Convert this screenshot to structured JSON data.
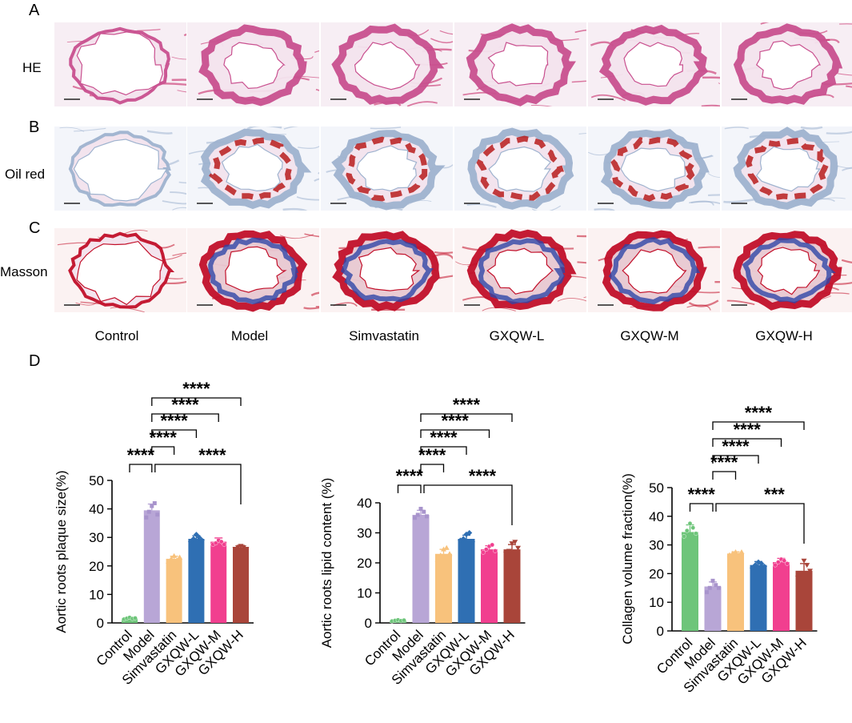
{
  "panel_labels": {
    "a": "A",
    "b": "B",
    "c": "C",
    "d": "D"
  },
  "row_labels": [
    "HE",
    "Oil red",
    "Masson"
  ],
  "groups": [
    "Control",
    "Model",
    "Simvastatin",
    "GXQW-L",
    "GXQW-M",
    "GXQW-H"
  ],
  "colors": {
    "he_bg": "#f7eef4",
    "he_ring": "#c9508f",
    "he_fiber": "#c2185b",
    "oil_bg": "#f3f5fa",
    "oil_ring": "#9fb3cf",
    "oil_lipid": "#b71c1c",
    "masson_bg": "#fbf2f2",
    "masson_red": "#c2102a",
    "masson_blue": "#2f46a8",
    "bars": [
      "#6ec57a",
      "#b8a6d6",
      "#f8c27c",
      "#2f6fb3",
      "#f13f8f",
      "#a9453a"
    ]
  },
  "chart_data": [
    {
      "type": "bar",
      "categories": [
        "Control",
        "Model",
        "Simvastatin",
        "GXQW-L",
        "GXQW-M",
        "GXQW-H"
      ],
      "values": [
        1.6,
        39.5,
        22.5,
        29.5,
        28.5,
        26.5
      ],
      "errors": [
        0.3,
        2.2,
        0.9,
        1.1,
        1.3,
        0.7
      ],
      "points": [
        [
          1.3,
          1.6,
          1.9,
          1.5,
          1.7
        ],
        [
          37,
          39,
          41,
          42,
          38
        ],
        [
          21.5,
          22.5,
          23.5,
          22,
          23
        ],
        [
          28.5,
          29.5,
          31,
          30,
          29
        ],
        [
          27.5,
          28,
          29,
          28.5,
          27.5
        ],
        [
          26,
          26.5,
          27,
          26.5,
          26
        ]
      ],
      "ylabel": "Aortic roots plaque size(%)",
      "ylim": [
        0,
        50
      ],
      "yticks": [
        0,
        10,
        20,
        30,
        40,
        50
      ],
      "significance": [
        {
          "from": 0,
          "to": 1,
          "label": "****"
        },
        {
          "from": 1,
          "to": 2,
          "label": "****"
        },
        {
          "from": 1,
          "to": 3,
          "label": "****"
        },
        {
          "from": 1,
          "to": 4,
          "label": "****"
        },
        {
          "from": 1,
          "to": 5,
          "label": "****"
        },
        {
          "from": 1,
          "to": 5,
          "label": "****",
          "shared": true
        }
      ]
    },
    {
      "type": "bar",
      "categories": [
        "Control",
        "Model",
        "Simvastatin",
        "GXQW-L",
        "GXQW-M",
        "GXQW-H"
      ],
      "values": [
        0.8,
        36,
        23,
        28,
        24.5,
        24.5
      ],
      "errors": [
        0.2,
        1.5,
        1.5,
        1.2,
        1.2,
        1.6
      ],
      "points": [
        [
          0.6,
          0.8,
          1.0,
          0.7,
          0.9
        ],
        [
          35,
          36,
          38,
          37,
          35.5
        ],
        [
          21,
          22.5,
          24.5,
          25,
          23
        ],
        [
          27.5,
          28,
          29.5,
          30,
          27
        ],
        [
          23.5,
          24.5,
          25.5,
          26,
          24
        ],
        [
          23,
          24,
          26.5,
          27,
          25
        ]
      ],
      "ylabel": "Aortic roots lipid content (%)",
      "ylim": [
        0,
        40
      ],
      "yticks": [
        0,
        10,
        20,
        30,
        40
      ],
      "significance": [
        {
          "from": 0,
          "to": 1,
          "label": "****"
        },
        {
          "from": 1,
          "to": 2,
          "label": "****"
        },
        {
          "from": 1,
          "to": 3,
          "label": "****"
        },
        {
          "from": 1,
          "to": 4,
          "label": "****"
        },
        {
          "from": 1,
          "to": 5,
          "label": "****"
        },
        {
          "from": 1,
          "to": 5,
          "label": "****",
          "shared": true
        }
      ]
    },
    {
      "type": "bar",
      "categories": [
        "Control",
        "Model",
        "Simvastatin",
        "GXQW-L",
        "GXQW-M",
        "GXQW-H"
      ],
      "values": [
        34.5,
        15.5,
        27,
        23,
        24,
        21
      ],
      "errors": [
        2.5,
        1.6,
        0.6,
        1.2,
        1.3,
        2.5
      ],
      "points": [
        [
          33,
          35,
          37.5,
          36,
          34
        ],
        [
          13.5,
          15,
          17.5,
          16,
          15
        ],
        [
          26.5,
          27,
          27.5,
          26.5,
          27.5
        ],
        [
          22,
          23,
          24,
          23.5,
          22.5
        ],
        [
          23,
          24,
          25,
          24.5,
          23.5
        ],
        [
          18.5,
          20,
          24.5,
          23,
          21
        ]
      ],
      "ylabel": "Collagen volume fraction(%)",
      "ylim": [
        0,
        50
      ],
      "yticks": [
        0,
        10,
        20,
        30,
        40,
        50
      ],
      "significance": [
        {
          "from": 0,
          "to": 1,
          "label": "****"
        },
        {
          "from": 1,
          "to": 2,
          "label": "****"
        },
        {
          "from": 1,
          "to": 3,
          "label": "****"
        },
        {
          "from": 1,
          "to": 4,
          "label": "****"
        },
        {
          "from": 1,
          "to": 5,
          "label": "****"
        },
        {
          "from": 1,
          "to": 5,
          "label": "***",
          "shared": true
        }
      ]
    }
  ]
}
